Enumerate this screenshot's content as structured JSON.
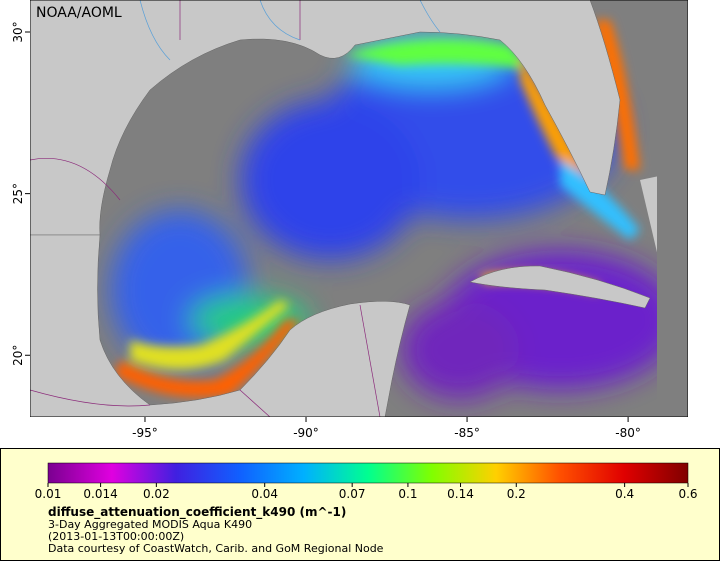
{
  "source_label": "NOAA/AOML",
  "map": {
    "xlim": [
      -98.57,
      -78.14
    ],
    "ylim": [
      18.09,
      30.99
    ],
    "xticks": [
      {
        "value": -95,
        "label": "-95°"
      },
      {
        "value": -90,
        "label": "-90°"
      },
      {
        "value": -85,
        "label": "-85°"
      },
      {
        "value": -80,
        "label": "-80°"
      }
    ],
    "yticks": [
      {
        "value": 20,
        "label": "20°"
      },
      {
        "value": 25,
        "label": "25°"
      },
      {
        "value": 30,
        "label": "30°"
      }
    ]
  },
  "colorbar": {
    "lim": [
      0.01,
      0.6
    ],
    "log": true,
    "ticks": [
      0.01,
      0.014,
      0.02,
      0.04,
      0.07,
      0.1,
      0.14,
      0.2,
      0.4,
      0.6
    ],
    "colors": [
      "#7a0090",
      "#e000e0",
      "#4020e0",
      "#1060ff",
      "#00b0ff",
      "#00ff90",
      "#80ff00",
      "#ffd000",
      "#ff5000",
      "#e00000",
      "#800000"
    ]
  },
  "legend": {
    "title": "diffuse_attenuation_coefficient_k490 (m^-1)",
    "lines": [
      "3-Day Aggregated MODIS Aqua K490",
      "(2013-01-13T00:00:00Z)",
      "Data courtesy of CoastWatch, Carib. and GoM Regional Node"
    ]
  }
}
